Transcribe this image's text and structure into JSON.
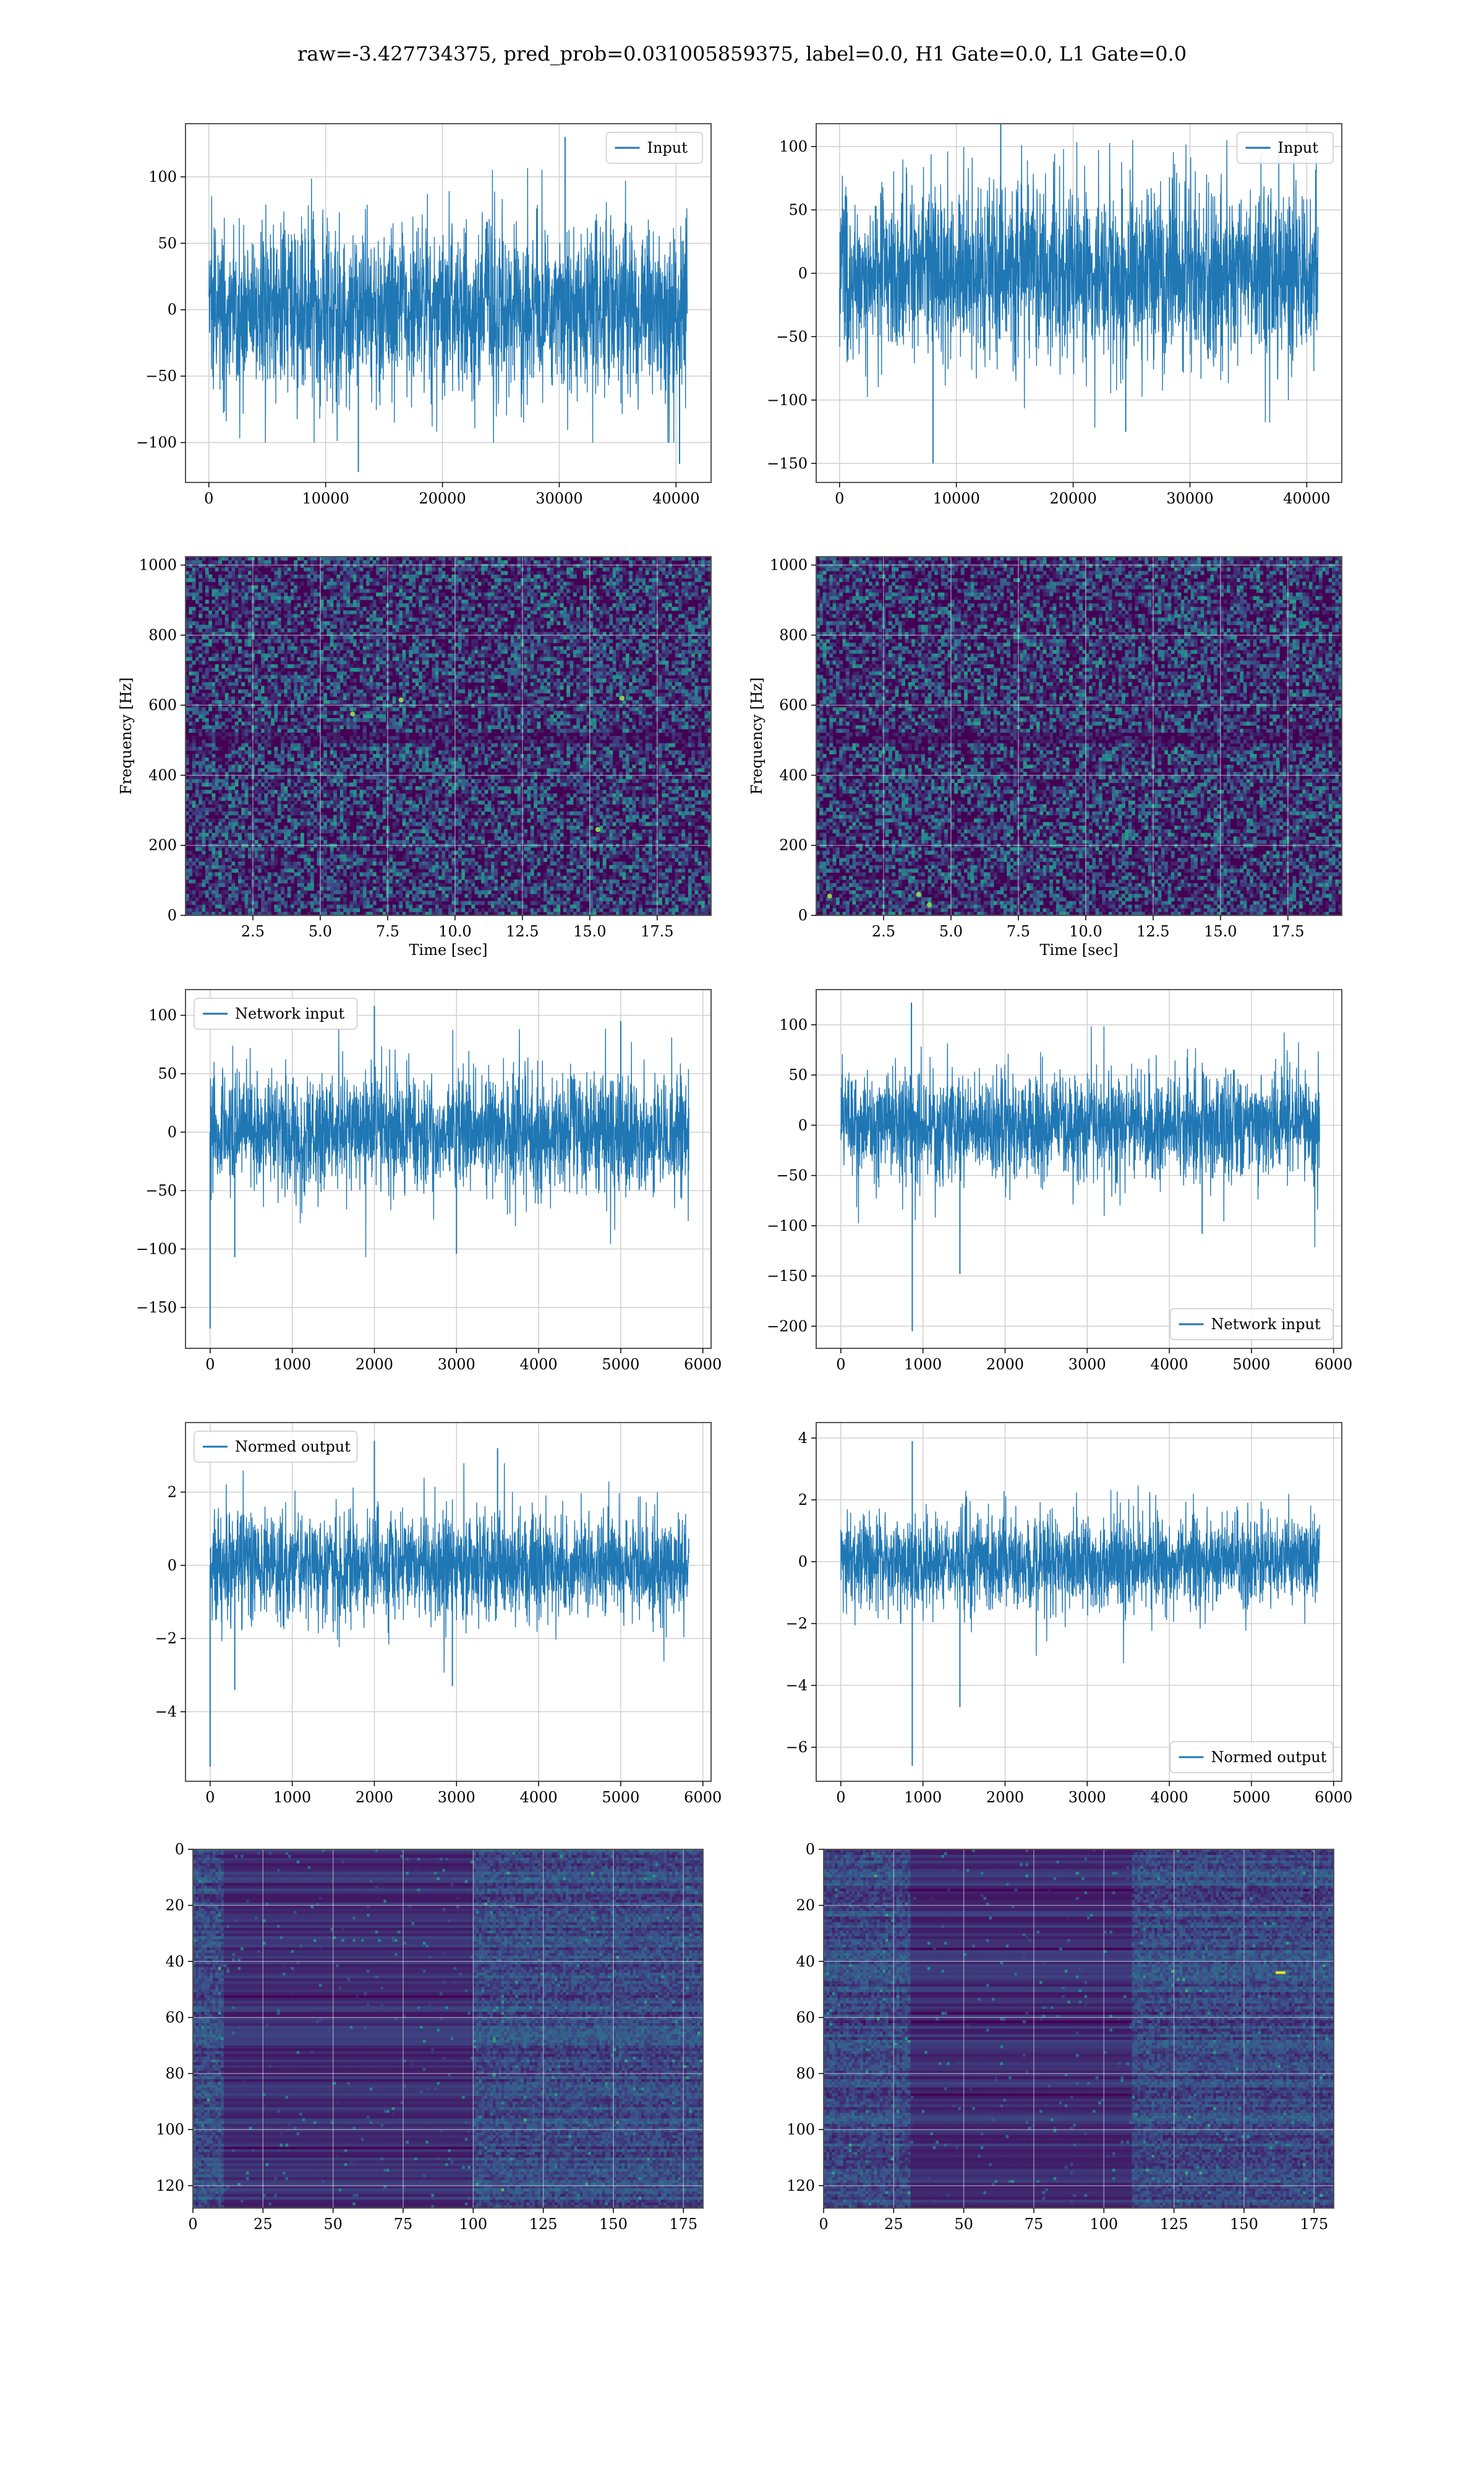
{
  "figure_title": "raw=-3.427734375, pred_prob=0.031005859375, label=0.0, H1 Gate=0.0, L1 Gate=0.0",
  "colors": {
    "line": "#1f77b4",
    "grid": "#d0d0d0",
    "frame": "#555555",
    "viridis_low": "#440154",
    "viridis_mid_low": "#3b528b",
    "viridis_mid": "#21918c",
    "viridis_mid_high": "#5ec962",
    "viridis_high": "#fde725"
  },
  "chart_data": [
    {
      "id": "input-left",
      "type": "line",
      "legend": [
        "Input"
      ],
      "legend_loc": "upper right",
      "grid": true,
      "xlim": [
        -2000,
        43000
      ],
      "ylim": [
        -130,
        140
      ],
      "xticks": [
        0,
        10000,
        20000,
        30000,
        40000
      ],
      "yticks": [
        -100,
        -50,
        0,
        50,
        100
      ],
      "series": [
        {
          "name": "Input",
          "x_range": [
            0,
            40960
          ],
          "envelope": {
            "typical_upper": 65,
            "typical_lower": -65,
            "max": 130,
            "min": -122
          },
          "notable_points": [
            [
              30500,
              130
            ],
            [
              12800,
              -122
            ],
            [
              40300,
              -116
            ]
          ]
        }
      ]
    },
    {
      "id": "input-right",
      "type": "line",
      "legend": [
        "Input"
      ],
      "legend_loc": "upper right",
      "grid": true,
      "xlim": [
        -2000,
        43000
      ],
      "ylim": [
        -165,
        118
      ],
      "xticks": [
        0,
        10000,
        20000,
        30000,
        40000
      ],
      "yticks": [
        -150,
        -100,
        -50,
        0,
        50,
        100
      ],
      "series": [
        {
          "name": "Input",
          "x_range": [
            0,
            40960
          ],
          "envelope": {
            "typical_upper": 70,
            "typical_lower": -75,
            "max": 128,
            "min": -150
          },
          "notable_points": [
            [
              13800,
              128
            ],
            [
              8000,
              -150
            ],
            [
              24500,
              -125
            ]
          ]
        }
      ]
    },
    {
      "id": "spectrogram-left",
      "type": "heatmap",
      "xlabel": "Time [sec]",
      "ylabel": "Frequency [Hz]",
      "grid": true,
      "xlim": [
        0,
        19.5
      ],
      "ylim": [
        0,
        1024
      ],
      "xticks": [
        2.5,
        5.0,
        7.5,
        10.0,
        12.5,
        15.0,
        17.5
      ],
      "xtick_labels": [
        "2.5",
        "5.0",
        "7.5",
        "10.0",
        "12.5",
        "15.0",
        "17.5"
      ],
      "yticks": [
        0,
        200,
        400,
        600,
        800,
        1000
      ],
      "description_values": {
        "bright_spots": [
          [
            8.0,
            615
          ],
          [
            15.3,
            245
          ],
          [
            16.2,
            620
          ],
          [
            6.2,
            575
          ]
        ]
      }
    },
    {
      "id": "spectrogram-right",
      "type": "heatmap",
      "xlabel": "Time [sec]",
      "ylabel": "Frequency [Hz]",
      "grid": true,
      "xlim": [
        0,
        19.5
      ],
      "ylim": [
        0,
        1024
      ],
      "xticks": [
        2.5,
        5.0,
        7.5,
        10.0,
        12.5,
        15.0,
        17.5
      ],
      "xtick_labels": [
        "2.5",
        "5.0",
        "7.5",
        "10.0",
        "12.5",
        "15.0",
        "17.5"
      ],
      "yticks": [
        0,
        200,
        400,
        600,
        800,
        1000
      ],
      "description_values": {
        "bright_spots": [
          [
            0.5,
            55
          ],
          [
            3.8,
            60
          ],
          [
            4.2,
            30
          ]
        ]
      }
    },
    {
      "id": "network-input-left",
      "type": "line",
      "legend": [
        "Network input"
      ],
      "legend_loc": "upper left",
      "grid": true,
      "xlim": [
        -300,
        6100
      ],
      "ylim": [
        -185,
        122
      ],
      "xticks": [
        0,
        1000,
        2000,
        3000,
        4000,
        5000,
        6000
      ],
      "yticks": [
        -150,
        -100,
        -50,
        0,
        50,
        100
      ],
      "series": [
        {
          "name": "Network input",
          "x_range": [
            0,
            5830
          ],
          "envelope": {
            "typical_upper": 55,
            "typical_lower": -50,
            "max": 108,
            "min": -168
          },
          "notable_points": [
            [
              0,
              -168
            ],
            [
              2000,
              108
            ],
            [
              3000,
              -104
            ],
            [
              5000,
              95
            ],
            [
              300,
              -107
            ]
          ]
        }
      ]
    },
    {
      "id": "network-input-right",
      "type": "line",
      "legend": [
        "Network input"
      ],
      "legend_loc": "lower right",
      "grid": true,
      "xlim": [
        -300,
        6100
      ],
      "ylim": [
        -222,
        135
      ],
      "xticks": [
        0,
        1000,
        2000,
        3000,
        4000,
        5000,
        6000
      ],
      "yticks": [
        -200,
        -150,
        -100,
        -50,
        0,
        50,
        100
      ],
      "series": [
        {
          "name": "Network input",
          "x_range": [
            0,
            5830
          ],
          "envelope": {
            "typical_upper": 55,
            "typical_lower": -55,
            "max": 122,
            "min": -205
          },
          "notable_points": [
            [
              860,
              122
            ],
            [
              870,
              -205
            ],
            [
              1450,
              -148
            ],
            [
              4400,
              -108
            ]
          ]
        }
      ]
    },
    {
      "id": "normed-output-left",
      "type": "line",
      "legend": [
        "Normed output"
      ],
      "legend_loc": "upper left",
      "grid": true,
      "xlim": [
        -300,
        6100
      ],
      "ylim": [
        -5.9,
        3.9
      ],
      "xticks": [
        0,
        1000,
        2000,
        3000,
        4000,
        5000,
        6000
      ],
      "yticks": [
        -4,
        -2,
        0,
        2
      ],
      "series": [
        {
          "name": "Normed output",
          "x_range": [
            0,
            5830
          ],
          "envelope": {
            "typical_upper": 1.5,
            "typical_lower": -1.5,
            "max": 3.4,
            "min": -5.5
          },
          "notable_points": [
            [
              0,
              -5.5
            ],
            [
              2000,
              3.4
            ],
            [
              3500,
              3.2
            ],
            [
              300,
              -3.4
            ],
            [
              2950,
              -3.3
            ]
          ]
        }
      ]
    },
    {
      "id": "normed-output-right",
      "type": "line",
      "legend": [
        "Normed output"
      ],
      "legend_loc": "lower right",
      "grid": true,
      "xlim": [
        -300,
        6100
      ],
      "ylim": [
        -7.1,
        4.5
      ],
      "xticks": [
        0,
        1000,
        2000,
        3000,
        4000,
        5000,
        6000
      ],
      "yticks": [
        -6,
        -4,
        -2,
        0,
        2,
        4
      ],
      "series": [
        {
          "name": "Normed output",
          "x_range": [
            0,
            5830
          ],
          "envelope": {
            "typical_upper": 1.6,
            "typical_lower": -1.6,
            "max": 3.9,
            "min": -6.6
          },
          "notable_points": [
            [
              870,
              3.9
            ],
            [
              870,
              -6.6
            ],
            [
              1450,
              -4.7
            ]
          ]
        }
      ]
    },
    {
      "id": "feature-map-left",
      "type": "heatmap",
      "grid": true,
      "xlim": [
        0,
        182
      ],
      "ylim": [
        128,
        0
      ],
      "xticks": [
        0,
        25,
        50,
        75,
        100,
        125,
        150,
        175
      ],
      "yticks": [
        0,
        20,
        40,
        60,
        80,
        100,
        120
      ],
      "description_values": {
        "bright_regions_x": [
          [
            0,
            10
          ],
          [
            100,
            182
          ]
        ]
      }
    },
    {
      "id": "feature-map-right",
      "type": "heatmap",
      "grid": true,
      "xlim": [
        0,
        182
      ],
      "ylim": [
        128,
        0
      ],
      "xticks": [
        0,
        25,
        50,
        75,
        100,
        125,
        150,
        175
      ],
      "yticks": [
        0,
        20,
        40,
        60,
        80,
        100,
        120
      ],
      "description_values": {
        "bright_regions_x": [
          [
            0,
            30
          ],
          [
            110,
            182
          ]
        ],
        "bright_spot": [
          163,
          44
        ]
      }
    }
  ]
}
